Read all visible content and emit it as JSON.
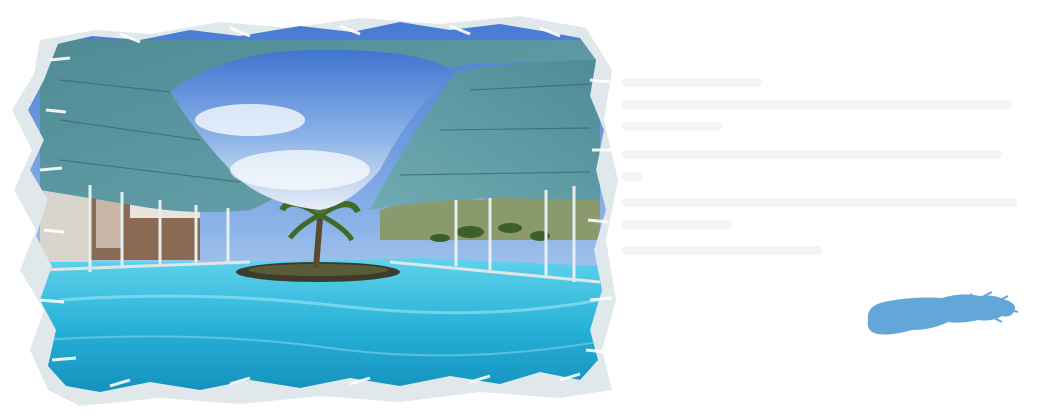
{
  "image": {
    "subject": "resort-pool-with-canopy",
    "sky_color": "#5d8fdc",
    "water_color": "#2fb4d8",
    "canopy_color": "#5d95a0",
    "frame_color": "#ffffff"
  },
  "text_panel": {
    "line_count": 8,
    "line_color": "#f4f4f4"
  },
  "accent": {
    "shape": "brush-stroke",
    "color": "#62a7d8"
  }
}
